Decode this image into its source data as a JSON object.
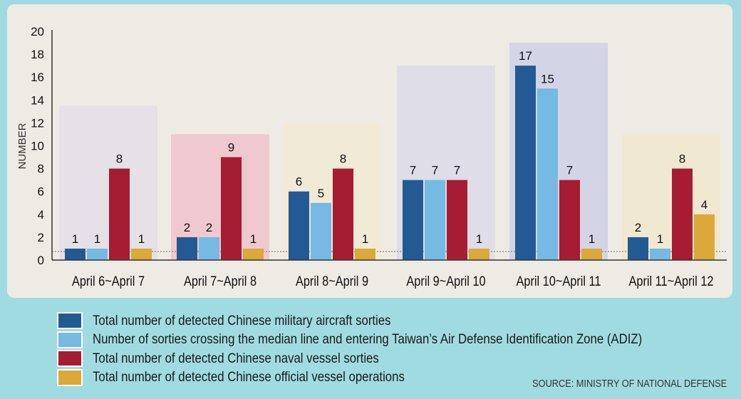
{
  "chart_data": {
    "type": "bar",
    "title": "",
    "xlabel": "",
    "ylabel": "NUMBER",
    "ylim": [
      0,
      20
    ],
    "yticks": [
      0,
      2,
      4,
      6,
      8,
      10,
      12,
      14,
      16,
      18,
      20
    ],
    "categories": [
      "April 6~April 7",
      "April 7~April 8",
      "April 8~April 9",
      "April 9~April 10",
      "April 10~April 11",
      "April 11~April 12"
    ],
    "series": [
      {
        "name": "Total number of detected Chinese military aircraft sorties",
        "color": "#235a94",
        "values": [
          1,
          2,
          6,
          7,
          17,
          2
        ]
      },
      {
        "name": "Number of sorties crossing the median line and entering Taiwan’s Air Defense Identification Zone (ADIZ)",
        "color": "#76b9e3",
        "values": [
          1,
          2,
          5,
          7,
          15,
          1
        ]
      },
      {
        "name": "Total number of detected Chinese naval vessel sorties",
        "color": "#a51c33",
        "values": [
          8,
          9,
          8,
          7,
          7,
          8
        ]
      },
      {
        "name": "Total number of detected Chinese official vessel operations",
        "color": "#dba83a",
        "values": [
          1,
          1,
          1,
          1,
          1,
          4
        ]
      }
    ],
    "reference_line": 0.75,
    "grid": false,
    "legend_position": "bottom-left"
  },
  "source": "SOURCE: MINISTRY OF NATIONAL DEFENSE"
}
